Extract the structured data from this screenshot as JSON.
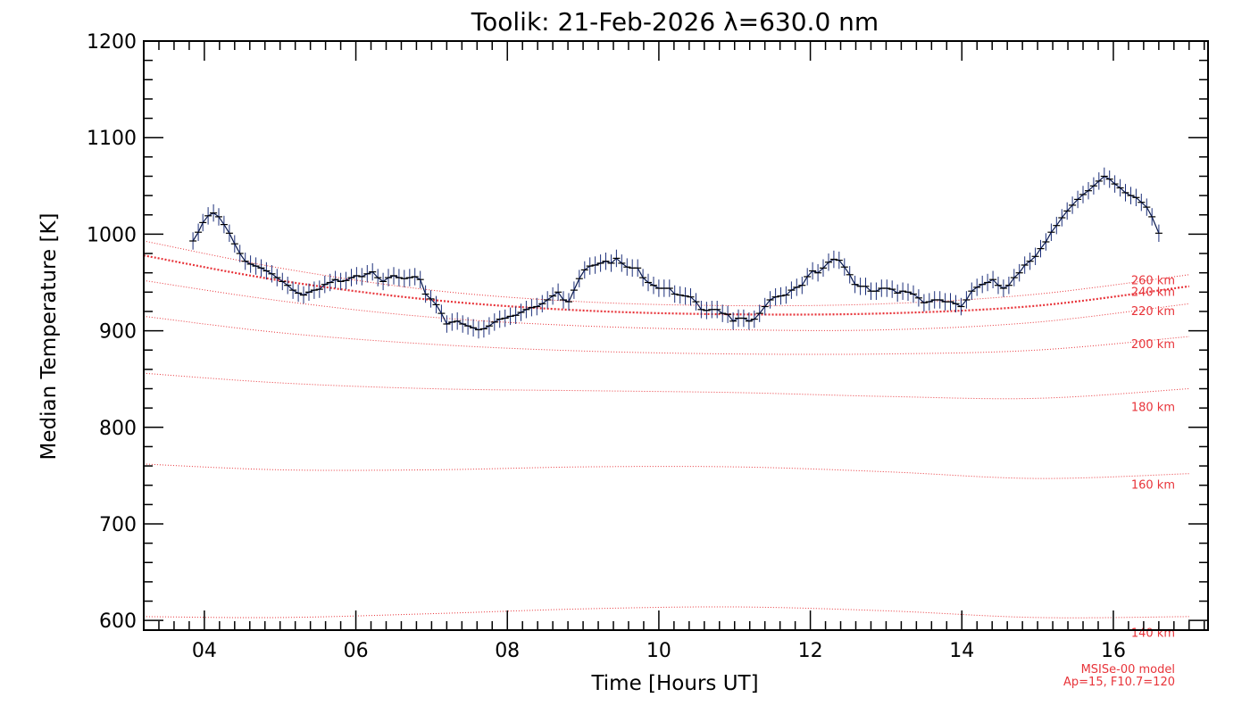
{
  "chart_data": {
    "type": "line",
    "title": "Toolik: 21-Feb-2026 λ=630.0 nm",
    "xlabel": "Time [Hours UT]",
    "ylabel": "Median Temperature [K]",
    "xlim": [
      3.2,
      17.25
    ],
    "ylim": [
      590,
      1200
    ],
    "xticks": [
      4,
      6,
      8,
      10,
      12,
      14,
      16
    ],
    "xtick_labels": [
      "04",
      "06",
      "08",
      "10",
      "12",
      "14",
      "16"
    ],
    "yticks": [
      600,
      700,
      800,
      900,
      1000,
      1100,
      1200
    ],
    "ytick_labels": [
      "600",
      "700",
      "800",
      "900",
      "1000",
      "1100",
      "1200"
    ],
    "grid": false,
    "colors": {
      "measured": "#0b1a4d",
      "model": "#e8343a",
      "axes": "#000000"
    },
    "measured": {
      "error_bar_k": 9,
      "points": [
        [
          3.85,
          993
        ],
        [
          3.92,
          1002
        ],
        [
          3.98,
          1012
        ],
        [
          4.05,
          1019
        ],
        [
          4.12,
          1022
        ],
        [
          4.19,
          1018
        ],
        [
          4.26,
          1010
        ],
        [
          4.33,
          1001
        ],
        [
          4.4,
          990
        ],
        [
          4.47,
          980
        ],
        [
          4.54,
          972
        ],
        [
          4.61,
          969
        ],
        [
          4.68,
          967
        ],
        [
          4.75,
          965
        ],
        [
          4.82,
          962
        ],
        [
          4.89,
          959
        ],
        [
          4.96,
          955
        ],
        [
          5.03,
          951
        ],
        [
          5.1,
          947
        ],
        [
          5.17,
          942
        ],
        [
          5.24,
          939
        ],
        [
          5.31,
          937
        ],
        [
          5.38,
          940
        ],
        [
          5.45,
          942
        ],
        [
          5.52,
          943
        ],
        [
          5.59,
          948
        ],
        [
          5.66,
          950
        ],
        [
          5.73,
          953
        ],
        [
          5.8,
          951
        ],
        [
          5.87,
          952
        ],
        [
          5.94,
          955
        ],
        [
          6.01,
          957
        ],
        [
          6.08,
          956
        ],
        [
          6.15,
          959
        ],
        [
          6.22,
          961
        ],
        [
          6.29,
          955
        ],
        [
          6.36,
          951
        ],
        [
          6.43,
          955
        ],
        [
          6.5,
          957
        ],
        [
          6.57,
          955
        ],
        [
          6.64,
          954
        ],
        [
          6.71,
          955
        ],
        [
          6.78,
          956
        ],
        [
          6.85,
          953
        ],
        [
          6.92,
          938
        ],
        [
          6.99,
          933
        ],
        [
          7.06,
          927
        ],
        [
          7.13,
          918
        ],
        [
          7.2,
          907
        ],
        [
          7.27,
          909
        ],
        [
          7.34,
          910
        ],
        [
          7.41,
          907
        ],
        [
          7.48,
          905
        ],
        [
          7.55,
          903
        ],
        [
          7.62,
          901
        ],
        [
          7.69,
          902
        ],
        [
          7.76,
          905
        ],
        [
          7.83,
          909
        ],
        [
          7.9,
          912
        ],
        [
          7.97,
          913
        ],
        [
          8.04,
          915
        ],
        [
          8.11,
          916
        ],
        [
          8.18,
          919
        ],
        [
          8.25,
          922
        ],
        [
          8.32,
          924
        ],
        [
          8.39,
          925
        ],
        [
          8.46,
          928
        ],
        [
          8.53,
          932
        ],
        [
          8.6,
          936
        ],
        [
          8.67,
          940
        ],
        [
          8.74,
          932
        ],
        [
          8.81,
          930
        ],
        [
          8.88,
          942
        ],
        [
          8.95,
          954
        ],
        [
          9.02,
          963
        ],
        [
          9.09,
          967
        ],
        [
          9.16,
          968
        ],
        [
          9.23,
          970
        ],
        [
          9.3,
          972
        ],
        [
          9.37,
          970
        ],
        [
          9.44,
          975
        ],
        [
          9.51,
          970
        ],
        [
          9.58,
          966
        ],
        [
          9.65,
          965
        ],
        [
          9.72,
          965
        ],
        [
          9.79,
          955
        ],
        [
          9.86,
          950
        ],
        [
          9.93,
          947
        ],
        [
          10.0,
          944
        ],
        [
          10.07,
          944
        ],
        [
          10.14,
          944
        ],
        [
          10.21,
          938
        ],
        [
          10.28,
          937
        ],
        [
          10.35,
          936
        ],
        [
          10.42,
          935
        ],
        [
          10.49,
          930
        ],
        [
          10.56,
          922
        ],
        [
          10.63,
          921
        ],
        [
          10.7,
          922
        ],
        [
          10.77,
          922
        ],
        [
          10.84,
          918
        ],
        [
          10.91,
          917
        ],
        [
          10.98,
          910
        ],
        [
          11.05,
          913
        ],
        [
          11.12,
          913
        ],
        [
          11.19,
          910
        ],
        [
          11.26,
          912
        ],
        [
          11.33,
          918
        ],
        [
          11.4,
          925
        ],
        [
          11.47,
          932
        ],
        [
          11.54,
          935
        ],
        [
          11.61,
          936
        ],
        [
          11.68,
          937
        ],
        [
          11.75,
          942
        ],
        [
          11.82,
          945
        ],
        [
          11.89,
          947
        ],
        [
          11.96,
          956
        ],
        [
          12.03,
          962
        ],
        [
          12.1,
          960
        ],
        [
          12.17,
          965
        ],
        [
          12.24,
          971
        ],
        [
          12.31,
          974
        ],
        [
          12.38,
          973
        ],
        [
          12.45,
          966
        ],
        [
          12.52,
          958
        ],
        [
          12.59,
          948
        ],
        [
          12.66,
          946
        ],
        [
          12.73,
          946
        ],
        [
          12.8,
          941
        ],
        [
          12.87,
          941
        ],
        [
          12.94,
          944
        ],
        [
          13.01,
          944
        ],
        [
          13.08,
          943
        ],
        [
          13.15,
          939
        ],
        [
          13.22,
          941
        ],
        [
          13.29,
          940
        ],
        [
          13.36,
          938
        ],
        [
          13.43,
          934
        ],
        [
          13.5,
          929
        ],
        [
          13.57,
          930
        ],
        [
          13.64,
          932
        ],
        [
          13.71,
          932
        ],
        [
          13.78,
          930
        ],
        [
          13.85,
          930
        ],
        [
          13.92,
          928
        ],
        [
          13.99,
          925
        ],
        [
          14.06,
          932
        ],
        [
          14.13,
          941
        ],
        [
          14.2,
          945
        ],
        [
          14.27,
          948
        ],
        [
          14.34,
          950
        ],
        [
          14.41,
          953
        ],
        [
          14.48,
          947
        ],
        [
          14.55,
          944
        ],
        [
          14.62,
          947
        ],
        [
          14.69,
          955
        ],
        [
          14.76,
          960
        ],
        [
          14.83,
          968
        ],
        [
          14.9,
          972
        ],
        [
          14.97,
          977
        ],
        [
          15.04,
          985
        ],
        [
          15.11,
          992
        ],
        [
          15.18,
          1002
        ],
        [
          15.25,
          1009
        ],
        [
          15.32,
          1017
        ],
        [
          15.39,
          1024
        ],
        [
          15.46,
          1030
        ],
        [
          15.53,
          1036
        ],
        [
          15.6,
          1041
        ],
        [
          15.67,
          1045
        ],
        [
          15.74,
          1050
        ],
        [
          15.81,
          1055
        ],
        [
          15.88,
          1060
        ],
        [
          15.95,
          1057
        ],
        [
          16.02,
          1052
        ],
        [
          16.09,
          1048
        ],
        [
          16.16,
          1043
        ],
        [
          16.23,
          1040
        ],
        [
          16.3,
          1038
        ],
        [
          16.37,
          1033
        ],
        [
          16.44,
          1028
        ],
        [
          16.51,
          1018
        ],
        [
          16.6,
          1001
        ]
      ]
    },
    "model_curves": [
      {
        "label": "260 km",
        "thick": false,
        "points": [
          [
            3.2,
            993
          ],
          [
            5.0,
            965
          ],
          [
            7.0,
            942
          ],
          [
            9.0,
            930
          ],
          [
            11.0,
            926
          ],
          [
            13.0,
            928
          ],
          [
            15.0,
            938
          ],
          [
            17.0,
            958
          ]
        ]
      },
      {
        "label": "240 km",
        "thick": true,
        "points": [
          [
            3.2,
            978
          ],
          [
            5.0,
            952
          ],
          [
            7.0,
            932
          ],
          [
            9.0,
            921
          ],
          [
            11.0,
            917
          ],
          [
            13.0,
            918
          ],
          [
            15.0,
            926
          ],
          [
            17.0,
            946
          ]
        ]
      },
      {
        "label": "220 km",
        "thick": false,
        "points": [
          [
            3.2,
            952
          ],
          [
            5.0,
            931
          ],
          [
            7.0,
            914
          ],
          [
            9.0,
            905
          ],
          [
            11.0,
            901
          ],
          [
            13.0,
            901
          ],
          [
            15.0,
            909
          ],
          [
            17.0,
            928
          ]
        ]
      },
      {
        "label": "200 km",
        "thick": false,
        "points": [
          [
            3.2,
            915
          ],
          [
            5.0,
            898
          ],
          [
            7.0,
            886
          ],
          [
            9.0,
            879
          ],
          [
            11.0,
            876
          ],
          [
            13.0,
            876
          ],
          [
            15.0,
            880
          ],
          [
            17.0,
            894
          ]
        ]
      },
      {
        "label": "180 km",
        "thick": false,
        "points": [
          [
            3.2,
            856
          ],
          [
            5.0,
            846
          ],
          [
            7.0,
            840
          ],
          [
            9.0,
            838
          ],
          [
            11.0,
            836
          ],
          [
            13.0,
            832
          ],
          [
            15.0,
            830
          ],
          [
            17.0,
            840
          ]
        ]
      },
      {
        "label": "160 km",
        "thick": false,
        "points": [
          [
            3.2,
            762
          ],
          [
            5.0,
            756
          ],
          [
            7.0,
            756
          ],
          [
            9.0,
            759
          ],
          [
            11.0,
            759
          ],
          [
            13.0,
            754
          ],
          [
            15.0,
            747
          ],
          [
            17.0,
            752
          ]
        ]
      },
      {
        "label": "140 km",
        "thick": false,
        "points": [
          [
            3.2,
            604
          ],
          [
            5.0,
            603
          ],
          [
            7.0,
            607
          ],
          [
            9.0,
            612
          ],
          [
            11.0,
            614
          ],
          [
            13.0,
            610
          ],
          [
            15.0,
            603
          ],
          [
            17.0,
            604
          ]
        ]
      }
    ],
    "footnote": [
      "MSISe-00 model",
      "Ap=15, F10.7=120"
    ]
  }
}
